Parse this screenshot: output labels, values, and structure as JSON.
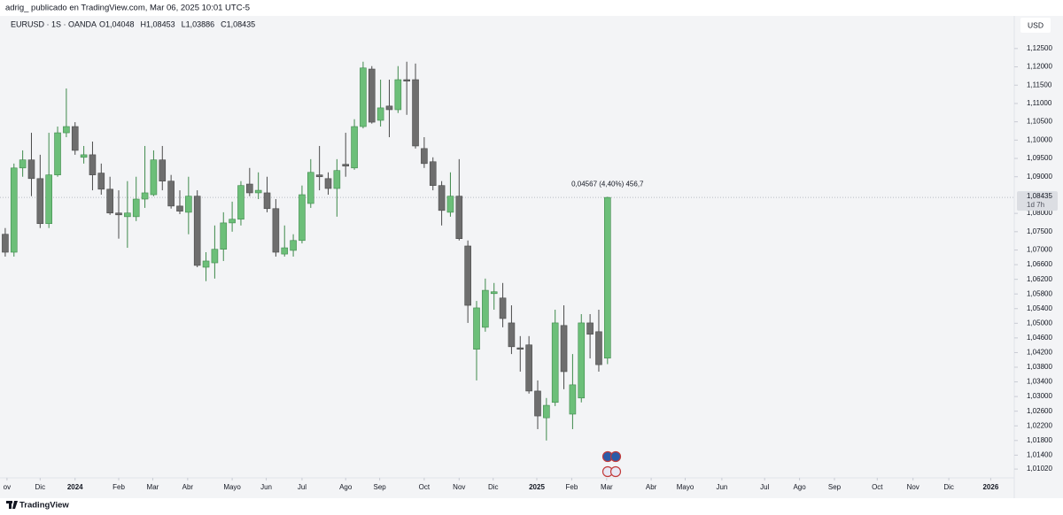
{
  "header": {
    "attribution": "adrig_ publicado en TradingView.com, Mar 06, 2025 10:01 UTC-5"
  },
  "footer": {
    "brand": "TradingView"
  },
  "chart_data": {
    "type": "candlestick",
    "symbol": "EURUSD · 1S · OANDA",
    "ohlc_legend": [
      "O1,04048",
      "H1,08453",
      "L1,03886",
      "C1,08435"
    ],
    "currency": "USD",
    "annotation": "0,04567 (4,40%) 456,7",
    "last_price_label": "1,08435",
    "countdown": "1d 7h",
    "up_color": "#6cbf79",
    "up_border": "#3f8a4c",
    "down_color": "#6e6e6e",
    "down_border": "#4a4a4a",
    "grid": false,
    "xlim": [
      -0.6,
      115.6
    ],
    "xticks": [
      {
        "value": 0.2,
        "label": "ov"
      },
      {
        "value": 4.0,
        "label": "Dic"
      },
      {
        "value": 8.0,
        "label": "2024"
      },
      {
        "value": 13.0,
        "label": "Feb"
      },
      {
        "value": 16.9,
        "label": "Mar"
      },
      {
        "value": 20.9,
        "label": "Abr"
      },
      {
        "value": 26.0,
        "label": "Mayo"
      },
      {
        "value": 29.9,
        "label": "Jun"
      },
      {
        "value": 34.0,
        "label": "Jul"
      },
      {
        "value": 39.0,
        "label": "Ago"
      },
      {
        "value": 42.9,
        "label": "Sep"
      },
      {
        "value": 48.0,
        "label": "Oct"
      },
      {
        "value": 52.0,
        "label": "Nov"
      },
      {
        "value": 55.9,
        "label": "Dic"
      },
      {
        "value": 60.9,
        "label": "2025"
      },
      {
        "value": 64.9,
        "label": "Feb"
      },
      {
        "value": 68.9,
        "label": "Mar"
      },
      {
        "value": 74.0,
        "label": "Abr"
      },
      {
        "value": 77.9,
        "label": "Mayo"
      },
      {
        "value": 82.1,
        "label": "Jun"
      },
      {
        "value": 87.0,
        "label": "Jul"
      },
      {
        "value": 91.0,
        "label": "Ago"
      },
      {
        "value": 95.0,
        "label": "Sep"
      },
      {
        "value": 99.9,
        "label": "Oct"
      },
      {
        "value": 104.0,
        "label": "Nov"
      },
      {
        "value": 108.1,
        "label": "Dic"
      },
      {
        "value": 112.9,
        "label": "2026"
      }
    ],
    "ylim": [
      1.0066,
      1.131
    ],
    "yticks": [
      {
        "value": 1.125,
        "label": "1,12500"
      },
      {
        "value": 1.12,
        "label": "1,12000"
      },
      {
        "value": 1.115,
        "label": "1,11500"
      },
      {
        "value": 1.11,
        "label": "1,11000"
      },
      {
        "value": 1.105,
        "label": "1,10500"
      },
      {
        "value": 1.1,
        "label": "1,10000"
      },
      {
        "value": 1.095,
        "label": "1,09500"
      },
      {
        "value": 1.09,
        "label": "1,09000"
      },
      {
        "value": 1.08,
        "label": "1,08000"
      },
      {
        "value": 1.075,
        "label": "1,07500"
      },
      {
        "value": 1.07,
        "label": "1,07000"
      },
      {
        "value": 1.066,
        "label": "1,06600"
      },
      {
        "value": 1.062,
        "label": "1,06200"
      },
      {
        "value": 1.058,
        "label": "1,05800"
      },
      {
        "value": 1.054,
        "label": "1,05400"
      },
      {
        "value": 1.05,
        "label": "1,05000"
      },
      {
        "value": 1.046,
        "label": "1,04600"
      },
      {
        "value": 1.042,
        "label": "1,04200"
      },
      {
        "value": 1.038,
        "label": "1,03800"
      },
      {
        "value": 1.034,
        "label": "1,03400"
      },
      {
        "value": 1.03,
        "label": "1,03000"
      },
      {
        "value": 1.026,
        "label": "1,02600"
      },
      {
        "value": 1.022,
        "label": "1,02200"
      },
      {
        "value": 1.018,
        "label": "1,01800"
      },
      {
        "value": 1.014,
        "label": "1,01400"
      },
      {
        "value": 1.0102,
        "label": "1,01020"
      }
    ],
    "open": [
      1.0743,
      1.0694,
      1.0924,
      1.0946,
      1.0895,
      1.0772,
      1.0905,
      1.102,
      1.1037,
      1.0953,
      1.096,
      1.091,
      1.0866,
      1.0801,
      1.0791,
      1.0791,
      1.0839,
      1.0851,
      1.0946,
      1.0888,
      1.082,
      1.0803,
      1.0847,
      1.0653,
      1.0665,
      1.0702,
      1.0774,
      1.0784,
      1.088,
      1.0856,
      1.0856,
      1.0813,
      1.0689,
      1.0699,
      1.0726,
      1.0827,
      1.0905,
      1.0895,
      1.0868,
      1.0934,
      1.0924,
      1.1037,
      1.1194,
      1.1054,
      1.1093,
      1.1083,
      1.1165,
      1.1165,
      1.0977,
      1.0941,
      1.0876,
      1.0803,
      1.0847,
      1.0711,
      1.0429,
      1.0489,
      1.0581,
      1.0569,
      1.0501,
      1.0433,
      1.0441,
      1.0315,
      1.0242,
      1.0284,
      1.0494,
      1.0252,
      1.0296,
      1.0501,
      1.0477,
      1.04048
    ],
    "high": [
      1.076,
      1.0936,
      1.0972,
      1.102,
      1.096,
      1.102,
      1.1037,
      1.1141,
      1.1049,
      1.0984,
      1.0996,
      1.0936,
      1.09,
      1.0863,
      1.0888,
      1.09,
      1.0984,
      1.0972,
      1.0984,
      1.0905,
      1.0863,
      1.09,
      1.0863,
      1.0694,
      1.0767,
      1.0803,
      1.0832,
      1.0888,
      1.0924,
      1.0912,
      1.09,
      1.0839,
      1.0767,
      1.0743,
      1.0876,
      1.0948,
      1.0984,
      1.0912,
      1.0948,
      1.102,
      1.1057,
      1.1214,
      1.1202,
      1.1165,
      1.1165,
      1.1202,
      1.1214,
      1.1209,
      1.1008,
      1.0953,
      1.0888,
      1.0912,
      1.0948,
      1.0726,
      1.0561,
      1.0622,
      1.061,
      1.061,
      1.0549,
      1.0465,
      1.0465,
      1.0344,
      1.0296,
      1.0537,
      1.0549,
      1.0416,
      1.0525,
      1.0525,
      1.0537,
      1.08453
    ],
    "low": [
      1.0682,
      1.0682,
      1.09,
      1.0847,
      1.076,
      1.076,
      1.09,
      1.1008,
      1.096,
      1.0936,
      1.0863,
      1.0851,
      1.0796,
      1.0731,
      1.0706,
      1.0779,
      1.0815,
      1.0847,
      1.0863,
      1.0813,
      1.0798,
      1.0743,
      1.0653,
      1.0615,
      1.0622,
      1.067,
      1.075,
      1.0767,
      1.0847,
      1.0839,
      1.0803,
      1.0682,
      1.0682,
      1.0682,
      1.0718,
      1.0815,
      1.0863,
      1.0851,
      1.0791,
      1.09,
      1.0919,
      1.1032,
      1.1045,
      1.1037,
      1.1008,
      1.1074,
      1.1069,
      1.0977,
      1.0924,
      1.0863,
      1.0767,
      1.0791,
      1.0726,
      1.0501,
      1.0344,
      1.0477,
      1.0537,
      1.0489,
      1.0416,
      1.0368,
      1.0308,
      1.0211,
      1.018,
      1.0274,
      1.032,
      1.0211,
      1.0284,
      1.0404,
      1.0368,
      1.03886
    ],
    "close": [
      1.0694,
      1.0924,
      1.0946,
      1.0895,
      1.0772,
      1.0905,
      1.102,
      1.1037,
      1.0972,
      1.096,
      1.0905,
      1.0866,
      1.0801,
      1.0796,
      1.0801,
      1.0839,
      1.0856,
      1.0946,
      1.0888,
      1.082,
      1.0806,
      1.0847,
      1.0658,
      1.067,
      1.0702,
      1.0774,
      1.0784,
      1.0876,
      1.0856,
      1.0863,
      1.0813,
      1.0694,
      1.0706,
      1.0726,
      1.0851,
      1.0912,
      1.09,
      1.0868,
      1.0917,
      1.0929,
      1.1037,
      1.1197,
      1.1049,
      1.1088,
      1.1083,
      1.1165,
      1.1161,
      1.0984,
      1.0936,
      1.0876,
      1.0808,
      1.0847,
      1.0731,
      1.0549,
      1.0542,
      1.059,
      1.0586,
      1.0513,
      1.0436,
      1.0429,
      1.0315,
      1.0247,
      1.0276,
      1.0501,
      1.0368,
      1.0332,
      1.0501,
      1.047,
      1.0387,
      1.08435
    ]
  }
}
